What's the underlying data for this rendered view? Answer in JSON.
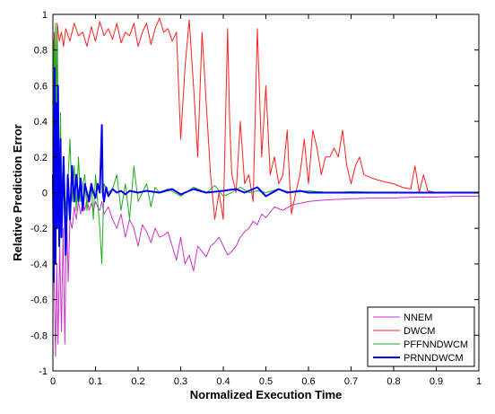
{
  "chart_data": {
    "type": "line",
    "title": "",
    "xlabel": "Normalized Execution Time",
    "ylabel": "Relative Prediction Error",
    "xlim": [
      0,
      1
    ],
    "ylim": [
      -1,
      1
    ],
    "x_ticks": [
      0,
      0.1,
      0.2,
      0.3,
      0.4,
      0.5,
      0.6,
      0.7,
      0.8,
      0.9,
      1
    ],
    "x_tick_labels": [
      "0",
      "0.1",
      "0.2",
      "0.3",
      "0.4",
      "0.5",
      "0.6",
      "0.7",
      "0.8",
      "0.9",
      "1"
    ],
    "y_ticks": [
      1,
      0.8,
      0.6,
      0.4,
      0.2,
      0,
      -0.2,
      -0.4,
      -0.6,
      -0.8,
      -1
    ],
    "y_tick_labels": [
      "1",
      "0.8",
      "0.6",
      "0.4",
      "0.2",
      "0",
      "-0.2",
      "-0.4",
      "-0.6",
      "-0.8",
      "-1"
    ],
    "grid": false,
    "legend_position": "bottom-right",
    "series": [
      {
        "name": "NNEM",
        "color": "#cc33cc",
        "width": 1,
        "x": [
          0,
          0.003,
          0.006,
          0.009,
          0.012,
          0.016,
          0.02,
          0.024,
          0.028,
          0.032,
          0.036,
          0.04,
          0.045,
          0.05,
          0.055,
          0.06,
          0.065,
          0.07,
          0.075,
          0.08,
          0.085,
          0.09,
          0.095,
          0.1,
          0.105,
          0.11,
          0.115,
          0.12,
          0.13,
          0.14,
          0.15,
          0.16,
          0.17,
          0.18,
          0.19,
          0.2,
          0.21,
          0.22,
          0.23,
          0.24,
          0.25,
          0.26,
          0.27,
          0.28,
          0.29,
          0.3,
          0.31,
          0.32,
          0.33,
          0.34,
          0.35,
          0.36,
          0.37,
          0.38,
          0.39,
          0.4,
          0.41,
          0.42,
          0.43,
          0.44,
          0.45,
          0.46,
          0.47,
          0.48,
          0.49,
          0.5,
          0.52,
          0.54,
          0.56,
          0.58,
          0.6,
          0.62,
          0.65,
          0.7,
          0.75,
          0.8,
          0.85,
          0.9,
          0.95,
          1.0
        ],
        "y": [
          -0.3,
          -0.5,
          -0.92,
          -0.4,
          -0.85,
          -0.3,
          -0.78,
          -0.2,
          -0.85,
          -0.1,
          -0.5,
          -0.15,
          -0.2,
          -0.08,
          -0.15,
          -0.05,
          -0.12,
          -0.05,
          -0.1,
          -0.04,
          -0.1,
          -0.06,
          -0.1,
          -0.05,
          -0.08,
          -0.1,
          -0.05,
          -0.12,
          -0.08,
          -0.15,
          -0.2,
          -0.12,
          -0.25,
          -0.15,
          -0.2,
          -0.3,
          -0.18,
          -0.22,
          -0.28,
          -0.2,
          -0.25,
          -0.24,
          -0.22,
          -0.3,
          -0.38,
          -0.25,
          -0.4,
          -0.35,
          -0.44,
          -0.3,
          -0.33,
          -0.36,
          -0.3,
          -0.28,
          -0.25,
          -0.3,
          -0.35,
          -0.33,
          -0.3,
          -0.25,
          -0.22,
          -0.2,
          -0.16,
          -0.18,
          -0.12,
          -0.14,
          -0.08,
          -0.1,
          -0.07,
          -0.06,
          -0.05,
          -0.045,
          -0.04,
          -0.035,
          -0.03,
          -0.03,
          -0.025,
          -0.025,
          -0.02,
          -0.02
        ]
      },
      {
        "name": "DWCM",
        "color": "#ff2020",
        "width": 1,
        "x": [
          0,
          0.003,
          0.006,
          0.01,
          0.015,
          0.02,
          0.025,
          0.03,
          0.04,
          0.05,
          0.06,
          0.07,
          0.08,
          0.09,
          0.1,
          0.11,
          0.12,
          0.13,
          0.14,
          0.15,
          0.16,
          0.17,
          0.18,
          0.19,
          0.2,
          0.21,
          0.22,
          0.23,
          0.24,
          0.25,
          0.26,
          0.27,
          0.28,
          0.29,
          0.3,
          0.31,
          0.32,
          0.33,
          0.34,
          0.35,
          0.36,
          0.37,
          0.38,
          0.39,
          0.4,
          0.41,
          0.415,
          0.42,
          0.43,
          0.44,
          0.45,
          0.46,
          0.47,
          0.48,
          0.49,
          0.5,
          0.51,
          0.52,
          0.53,
          0.54,
          0.55,
          0.555,
          0.56,
          0.57,
          0.58,
          0.59,
          0.6,
          0.61,
          0.62,
          0.63,
          0.64,
          0.65,
          0.66,
          0.67,
          0.68,
          0.69,
          0.7,
          0.71,
          0.72,
          0.73,
          0.75,
          0.78,
          0.8,
          0.82,
          0.84,
          0.85,
          0.86,
          0.87,
          0.88,
          0.9,
          0.95,
          1.0
        ],
        "y": [
          -0.1,
          0.9,
          0.3,
          0.95,
          0.85,
          0.9,
          0.82,
          0.92,
          0.85,
          0.95,
          0.88,
          0.9,
          0.82,
          0.93,
          0.85,
          0.96,
          0.88,
          0.92,
          0.86,
          0.95,
          0.84,
          0.9,
          0.88,
          0.95,
          0.82,
          0.9,
          0.95,
          0.83,
          0.92,
          0.98,
          0.9,
          0.92,
          0.85,
          0.9,
          0.3,
          0.7,
          0.97,
          0.6,
          0.2,
          0.9,
          0.5,
          0.1,
          -0.15,
          0.0,
          -0.15,
          0.92,
          0.4,
          0.1,
          0.0,
          0.4,
          0.05,
          0.1,
          -0.05,
          0.92,
          0.2,
          0.6,
          0.1,
          0.2,
          0.05,
          0.1,
          0.35,
          0.1,
          -0.12,
          0.0,
          0.1,
          0.3,
          0.05,
          0.35,
          0.25,
          0.1,
          0.2,
          0.2,
          0.25,
          0.2,
          0.35,
          0.15,
          0.05,
          0.15,
          0.2,
          0.1,
          0.08,
          0.06,
          0.05,
          0.03,
          0.02,
          0.15,
          0.0,
          0.1,
          0.01,
          0.0,
          0.0,
          0.0
        ]
      },
      {
        "name": "PFFNNDWCM",
        "color": "#22aa22",
        "width": 1,
        "x": [
          0,
          0.002,
          0.004,
          0.006,
          0.008,
          0.01,
          0.012,
          0.015,
          0.018,
          0.02,
          0.025,
          0.03,
          0.035,
          0.04,
          0.045,
          0.05,
          0.055,
          0.06,
          0.065,
          0.07,
          0.075,
          0.08,
          0.085,
          0.09,
          0.095,
          0.1,
          0.11,
          0.115,
          0.12,
          0.13,
          0.14,
          0.15,
          0.16,
          0.17,
          0.18,
          0.19,
          0.2,
          0.21,
          0.22,
          0.23,
          0.24,
          0.25,
          0.27,
          0.3,
          0.33,
          0.36,
          0.38,
          0.4,
          0.42,
          0.44,
          0.46,
          0.48,
          0.5,
          0.53,
          0.56,
          0.6,
          0.65,
          0.7,
          0.8,
          0.9,
          1.0
        ],
        "y": [
          0.0,
          0.85,
          0.6,
          0.95,
          0.3,
          0.92,
          0.5,
          0.0,
          0.45,
          0.0,
          0.2,
          -0.1,
          0.05,
          0.3,
          -0.05,
          0.15,
          -0.1,
          0.2,
          -0.05,
          0.05,
          0.1,
          -0.1,
          0.0,
          0.05,
          -0.15,
          0.1,
          -0.2,
          -0.4,
          0.05,
          0.0,
          0.02,
          0.1,
          -0.1,
          0.05,
          -0.15,
          0.15,
          -0.05,
          0.0,
          0.05,
          -0.08,
          0.03,
          0.0,
          0.02,
          -0.02,
          0.03,
          0.0,
          0.04,
          -0.02,
          0.0,
          0.03,
          0.0,
          0.01,
          0.0,
          0.02,
          0.0,
          0.01,
          0.0,
          0.005,
          0.0,
          0.0,
          0.0
        ]
      },
      {
        "name": "PRNNDWCM",
        "color": "#0000ee",
        "width": 2,
        "x": [
          0,
          0.002,
          0.004,
          0.006,
          0.008,
          0.01,
          0.012,
          0.015,
          0.018,
          0.02,
          0.025,
          0.03,
          0.035,
          0.04,
          0.045,
          0.05,
          0.055,
          0.06,
          0.065,
          0.07,
          0.075,
          0.08,
          0.085,
          0.09,
          0.095,
          0.1,
          0.105,
          0.11,
          0.115,
          0.117,
          0.12,
          0.125,
          0.13,
          0.14,
          0.15,
          0.16,
          0.17,
          0.18,
          0.2,
          0.22,
          0.25,
          0.28,
          0.3,
          0.33,
          0.36,
          0.4,
          0.43,
          0.45,
          0.48,
          0.5,
          0.53,
          0.55,
          0.58,
          0.6,
          0.65,
          0.7,
          0.8,
          0.9,
          1.0
        ],
        "y": [
          0.1,
          -0.5,
          0.7,
          -0.4,
          0.5,
          -0.2,
          0.6,
          -0.3,
          0.3,
          -0.25,
          0.2,
          -0.35,
          0.1,
          -0.15,
          0.15,
          -0.05,
          0.1,
          -0.05,
          0.08,
          -0.1,
          0.05,
          0.0,
          -0.05,
          0.05,
          0.0,
          -0.03,
          0.05,
          0.0,
          0.38,
          0.0,
          -0.05,
          0.03,
          -0.02,
          0.02,
          0.0,
          0.01,
          -0.01,
          0.01,
          0.0,
          0.01,
          0.0,
          0.02,
          -0.01,
          0.02,
          0.0,
          0.01,
          0.02,
          0.0,
          0.03,
          -0.02,
          0.02,
          0.0,
          0.01,
          0.0,
          0.0,
          0.0,
          0.0,
          0.0,
          0.0
        ]
      }
    ]
  }
}
